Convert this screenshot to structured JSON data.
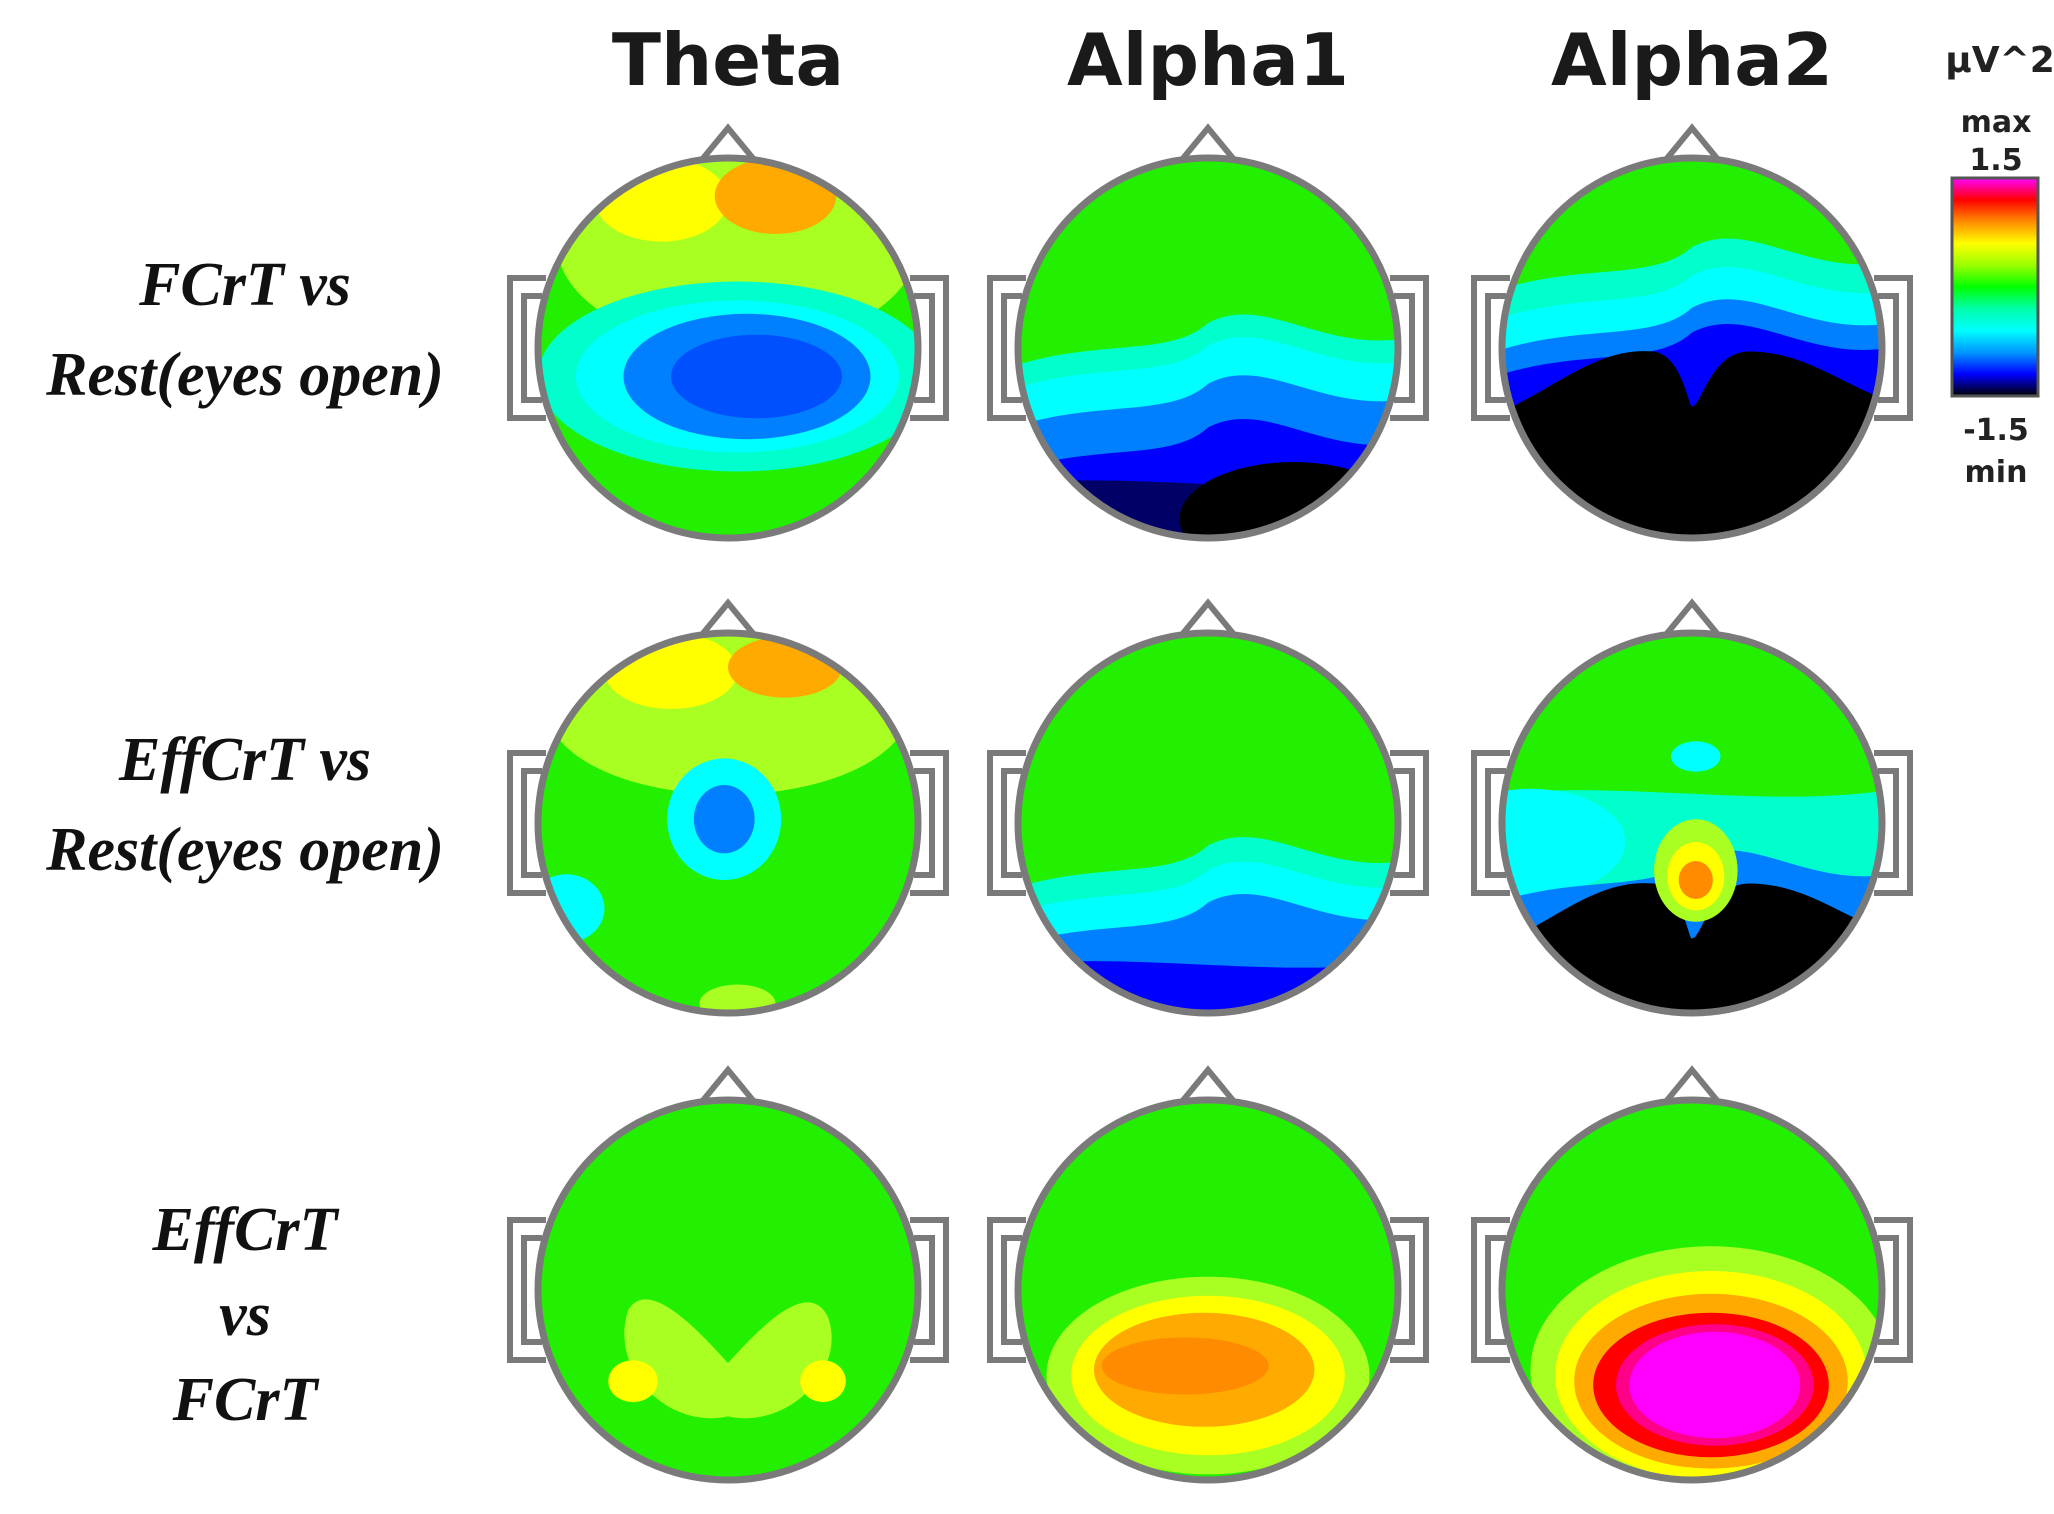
{
  "columns": [
    "Theta",
    "Alpha1",
    "Alpha2"
  ],
  "rows": [
    {
      "label_lines": [
        "FCrT  vs",
        "Rest(eyes open)"
      ]
    },
    {
      "label_lines": [
        "EffCrT vs",
        "Rest(eyes open)"
      ]
    },
    {
      "label_lines": [
        "EffCrT",
        "vs",
        "FCrT"
      ]
    }
  ],
  "colorbar": {
    "unit": "µV^2",
    "max_label": "max",
    "max_value": "1.5",
    "min_value": "-1.5",
    "min_label": "min",
    "colors_top_to_bottom": [
      "#ff00ff",
      "#ff0000",
      "#ff8c00",
      "#ffff00",
      "#9aff00",
      "#00ff00",
      "#00ffaa",
      "#00ffff",
      "#0096ff",
      "#0000ff",
      "#000000"
    ]
  },
  "maps": [
    {
      "row": 0,
      "column": "Theta",
      "features": [
        {
          "color": "#aaff22",
          "region": "frontal"
        },
        {
          "color": "#ffff00",
          "region": "frontal-left"
        },
        {
          "color": "#ffaa00",
          "region": "frontal-midline"
        },
        {
          "color": "#00ffcc",
          "region": "central band"
        },
        {
          "color": "#00ffff",
          "region": "central"
        },
        {
          "color": "#0080ff",
          "region": "centro-parietal"
        },
        {
          "color": "#0050ff",
          "region": "centro-parietal core"
        }
      ]
    },
    {
      "row": 0,
      "column": "Alpha1",
      "features": [
        {
          "color": "#00ffcc",
          "region": "central band"
        },
        {
          "color": "#00ffff",
          "region": "central"
        },
        {
          "color": "#0080ff",
          "region": "parietal"
        },
        {
          "color": "#0000ff",
          "region": "parieto-occipital"
        },
        {
          "color": "#000066",
          "region": "occipital"
        },
        {
          "color": "#000000",
          "region": "right occipital"
        }
      ]
    },
    {
      "row": 0,
      "column": "Alpha2",
      "features": [
        {
          "color": "#00ffcc",
          "region": "fronto-central band"
        },
        {
          "color": "#00ffff",
          "region": "central"
        },
        {
          "color": "#0080ff",
          "region": "central-posterior"
        },
        {
          "color": "#0000ff",
          "region": "parietal edge"
        },
        {
          "color": "#000000",
          "region": "parieto-occipital"
        }
      ]
    },
    {
      "row": 1,
      "column": "Theta",
      "features": [
        {
          "color": "#aaff22",
          "region": "frontal"
        },
        {
          "color": "#ffff00",
          "region": "frontal-left"
        },
        {
          "color": "#ffaa00",
          "region": "frontal-midline"
        },
        {
          "color": "#00ffff",
          "region": "central"
        },
        {
          "color": "#0080ff",
          "region": "central core"
        },
        {
          "color": "#00ffff",
          "region": "left temporal"
        },
        {
          "color": "#aaff22",
          "region": "occipital"
        }
      ]
    },
    {
      "row": 1,
      "column": "Alpha1",
      "features": [
        {
          "color": "#00ffcc",
          "region": "parietal band"
        },
        {
          "color": "#00ffff",
          "region": "parietal"
        },
        {
          "color": "#0080ff",
          "region": "parieto-occipital"
        },
        {
          "color": "#0000ff",
          "region": "occipital"
        }
      ]
    },
    {
      "row": 1,
      "column": "Alpha2",
      "features": [
        {
          "color": "#00ffcc",
          "region": "central"
        },
        {
          "color": "#00ffff",
          "region": "left temporal"
        },
        {
          "color": "#00ffff",
          "region": "fronto-central spot"
        },
        {
          "color": "#0080ff",
          "region": "parietal"
        },
        {
          "color": "#000000",
          "region": "occipital"
        },
        {
          "color": "#aaff22",
          "region": "parietal midline"
        },
        {
          "color": "#ffff00",
          "region": "parietal midline"
        },
        {
          "color": "#ff8c00",
          "region": "parietal midline core"
        }
      ]
    },
    {
      "row": 2,
      "column": "Theta",
      "features": [
        {
          "color": "#aaff22",
          "region": "centro-parietal"
        },
        {
          "color": "#ffff00",
          "region": "left parietal"
        },
        {
          "color": "#ffff00",
          "region": "right parietal"
        }
      ]
    },
    {
      "row": 2,
      "column": "Alpha1",
      "features": [
        {
          "color": "#aaff22",
          "region": "parietal"
        },
        {
          "color": "#ffff00",
          "region": "parietal"
        },
        {
          "color": "#ffaa00",
          "region": "parietal"
        },
        {
          "color": "#ff8c00",
          "region": "left parietal core"
        }
      ]
    },
    {
      "row": 2,
      "column": "Alpha2",
      "features": [
        {
          "color": "#aaff22",
          "region": "parietal"
        },
        {
          "color": "#ffff00",
          "region": "parietal"
        },
        {
          "color": "#ffaa00",
          "region": "parietal"
        },
        {
          "color": "#ff0000",
          "region": "parietal"
        },
        {
          "color": "#ff0088",
          "region": "parietal"
        },
        {
          "color": "#ff00ff",
          "region": "parietal core"
        }
      ]
    }
  ]
}
